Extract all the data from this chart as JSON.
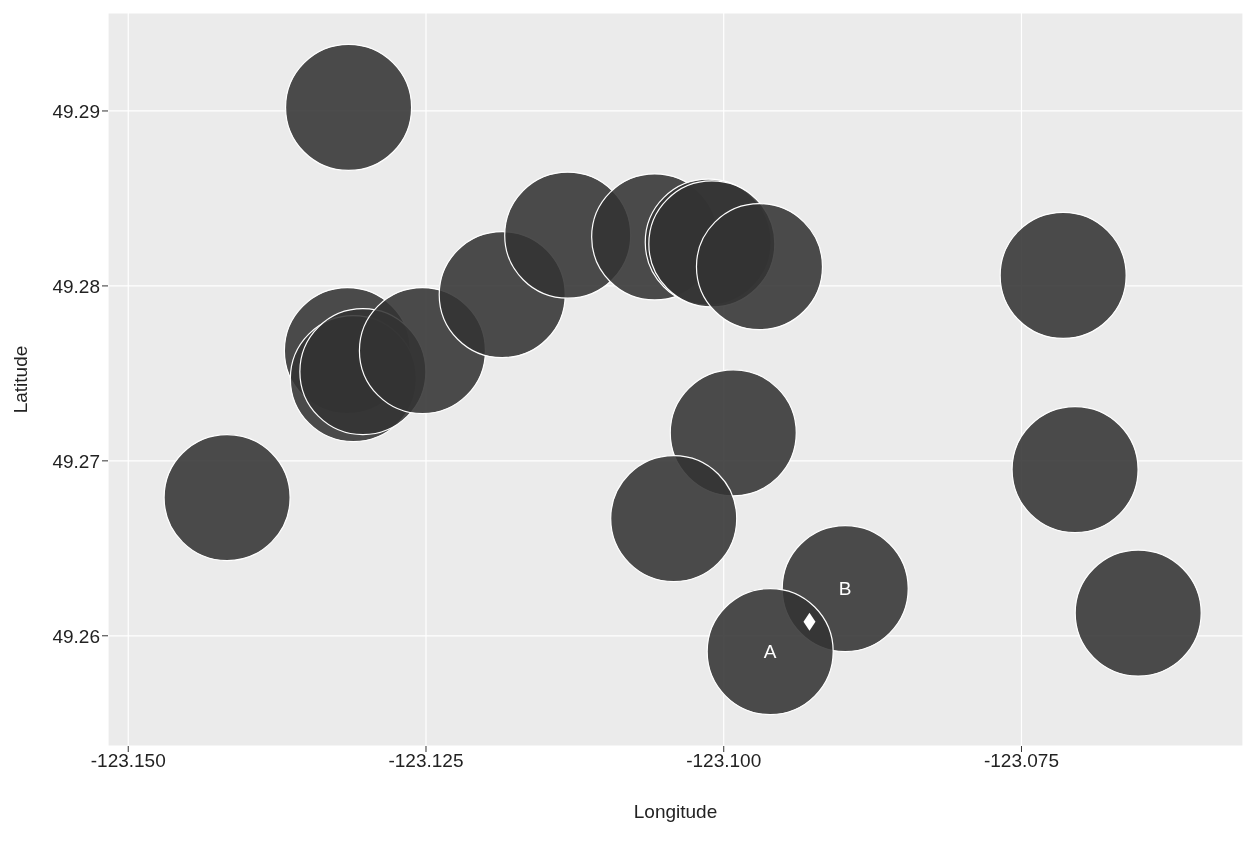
{
  "chart_data": {
    "type": "scatter",
    "xlabel": "Longitude",
    "ylabel": "Latitude",
    "series": [
      {
        "type": "bubble",
        "color": "#333333",
        "marker": "circle",
        "x": [
          -123.1315,
          -123.1417,
          -123.1316,
          -123.1311,
          -123.1303,
          -123.1253,
          -123.1186,
          -123.1131,
          -123.1058,
          -123.1013,
          -123.101,
          -123.097,
          -123.0992,
          -123.1042,
          -123.0898,
          -123.0961,
          -123.0715,
          -123.0705,
          -123.0652
        ],
        "values": [
          49.2902,
          49.2679,
          49.2763,
          49.2747,
          49.2751,
          49.2763,
          49.2795,
          49.2829,
          49.2828,
          49.2825,
          49.2824,
          49.2811,
          49.2716,
          49.2667,
          49.2627,
          49.2591,
          49.2806,
          49.2695,
          49.2613
        ],
        "sizes": [
          1,
          1,
          1,
          1,
          1,
          1,
          1,
          1,
          1,
          1,
          1,
          1,
          1,
          1,
          1,
          1,
          1,
          1,
          1
        ]
      },
      {
        "color": "#ffffff",
        "marker": "diamond",
        "x": [
          -123.0928
        ],
        "values": [
          49.2608
        ]
      }
    ],
    "annotations": [
      {
        "text": "A",
        "x": -123.0961,
        "y": 49.2591
      },
      {
        "text": "B",
        "x": -123.0898,
        "y": 49.2627
      }
    ],
    "xlim": [
      -123.1517,
      -123.0564
    ],
    "ylim": [
      49.2537,
      49.2956
    ],
    "xticks": [
      {
        "value": -123.15,
        "label": "-123.150"
      },
      {
        "value": -123.125,
        "label": "-123.125"
      },
      {
        "value": -123.1,
        "label": "-123.100"
      },
      {
        "value": -123.075,
        "label": "-123.075"
      }
    ],
    "yticks": [
      49.26,
      49.27,
      49.28,
      49.29
    ],
    "grid": true
  }
}
